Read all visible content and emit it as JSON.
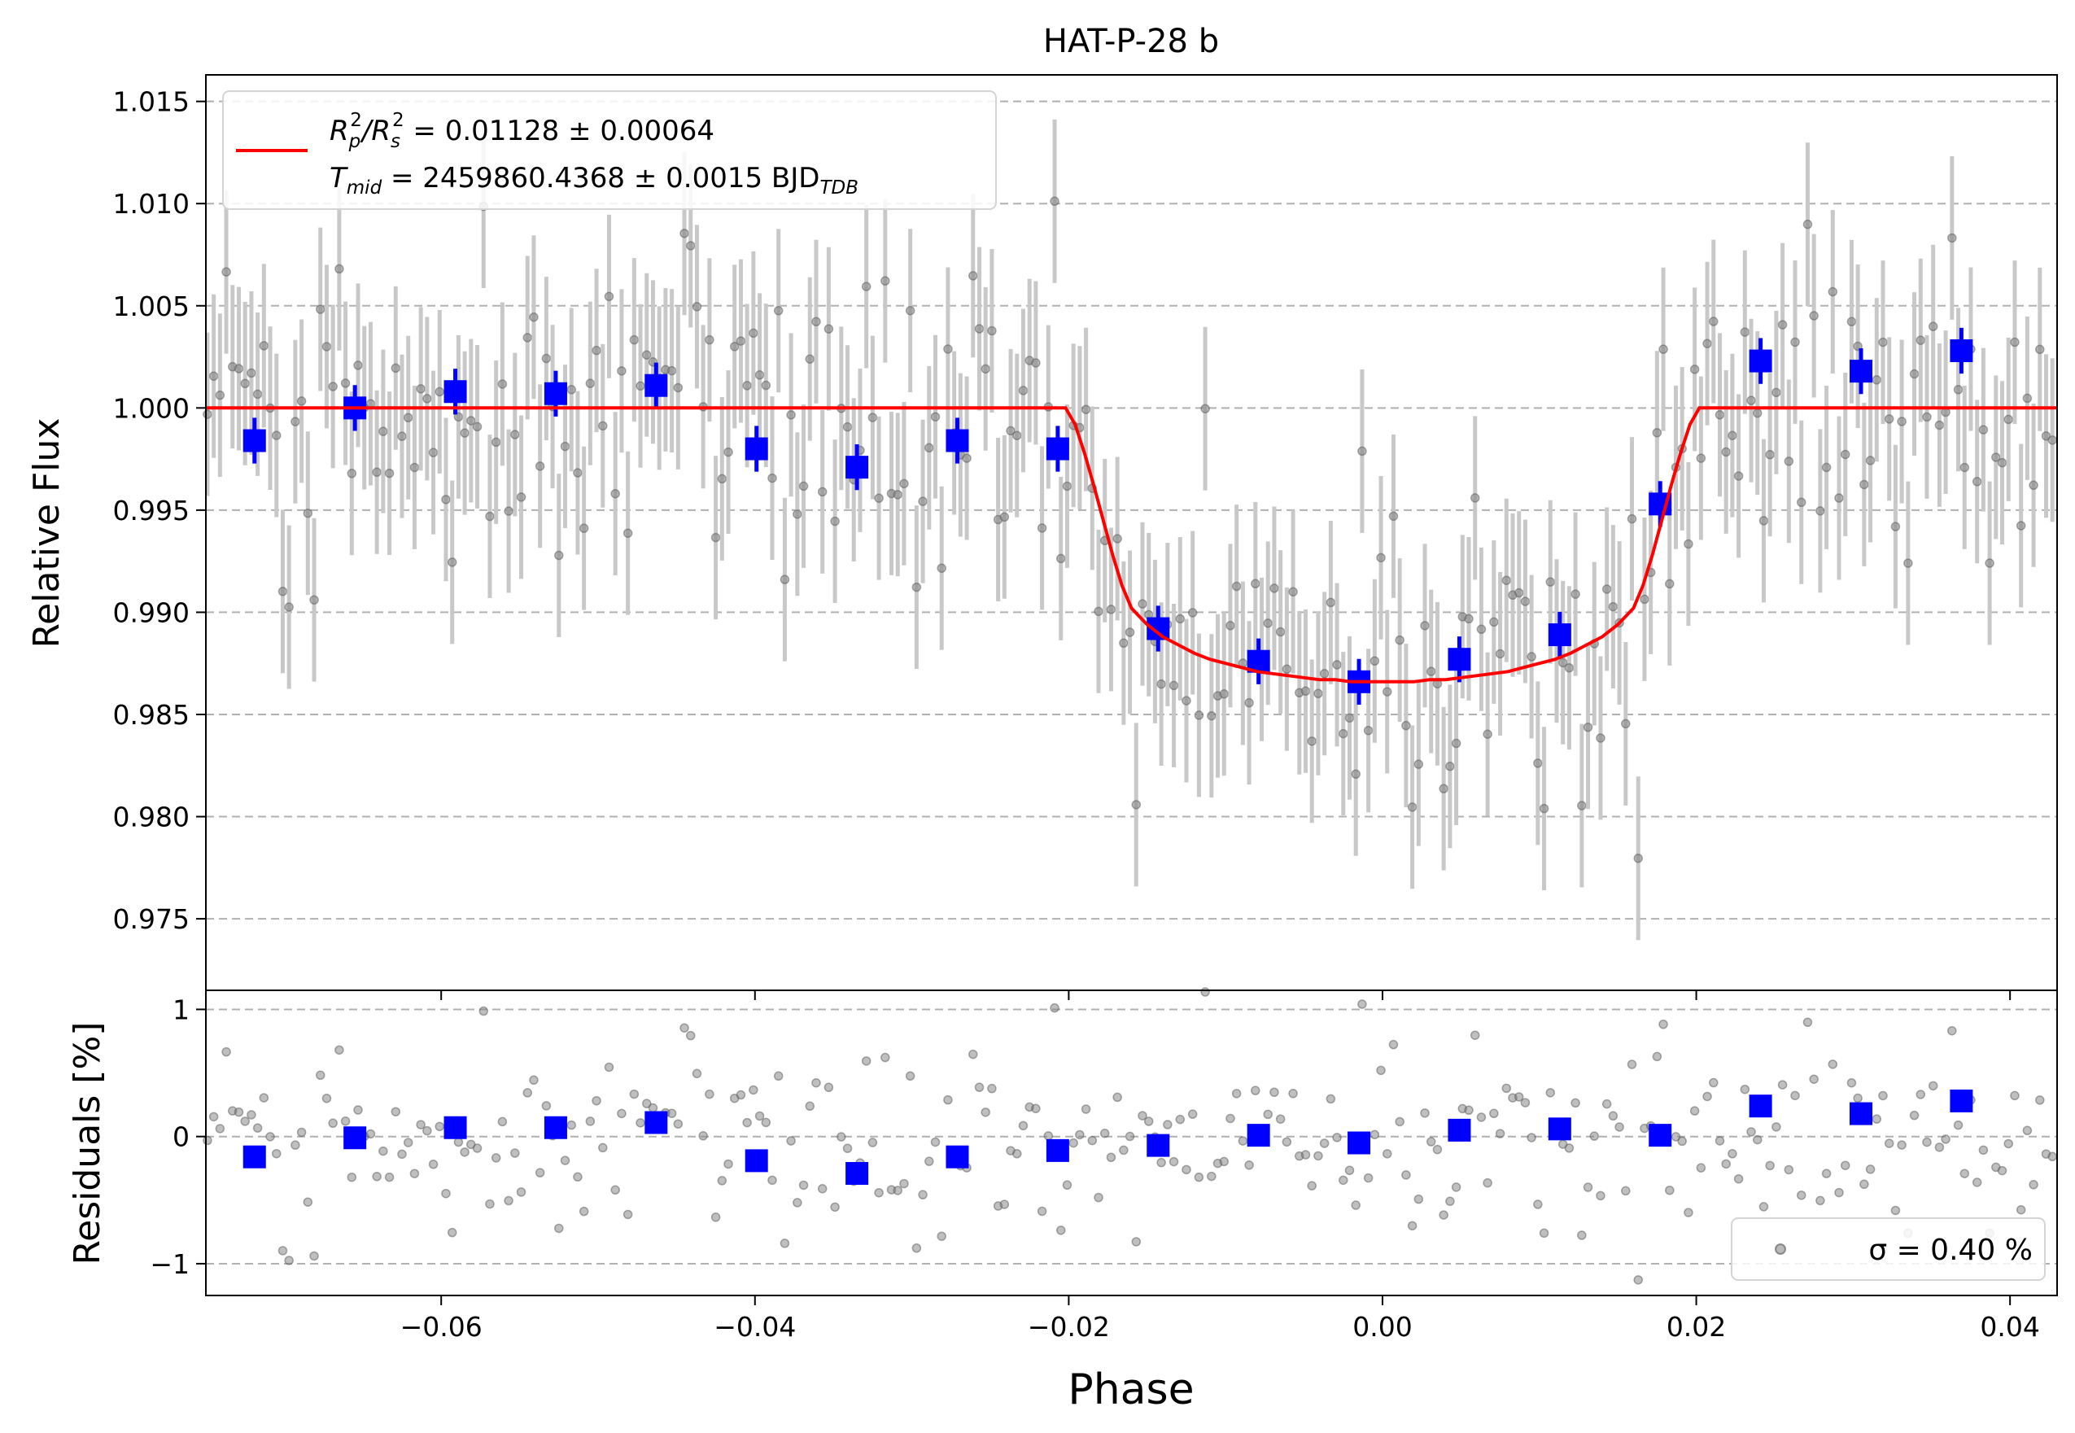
{
  "chart_data": [
    {
      "type": "scatter",
      "panel": "flux",
      "title": "HAT-P-28 b",
      "xlabel": "",
      "ylabel": "Relative Flux",
      "xlim": [
        -0.075,
        0.043
      ],
      "ylim": [
        0.9715,
        1.0163
      ],
      "grid": "horizontal-dashed",
      "legend_position": "top-left",
      "x_ticks": [
        -0.06,
        -0.04,
        -0.02,
        0.0,
        0.02,
        0.04
      ],
      "x_tick_labels": [
        "−0.06",
        "−0.04",
        "−0.02",
        "0.00",
        "0.02",
        "0.04"
      ],
      "y_ticks": [
        0.975,
        0.98,
        0.985,
        0.99,
        0.995,
        1.0,
        1.005,
        1.01,
        1.015
      ],
      "y_tick_labels": [
        "0.975",
        "0.980",
        "0.985",
        "0.990",
        "0.995",
        "1.000",
        "1.005",
        "1.010",
        "1.015"
      ],
      "legend": {
        "line1_prefix": "R",
        "line1_sub1": "p",
        "line1_sup1": "2",
        "line1_slash": "/R",
        "line1_sub2": "s",
        "line1_sup2": "2",
        "line1_value": " = 0.01128 ± 0.00064",
        "line2_prefix": "T",
        "line2_sub": "mid",
        "line2_value": " = 2459860.4368 ± 0.0015 BJD",
        "line2_unit_sub": "TDB"
      },
      "model": {
        "name": "",
        "color": "#ff0000",
        "baseline": 1.0,
        "depth": 0.01128,
        "t14_half": 0.0202,
        "t23_half": 0.0158,
        "limb_darkening": 0.3,
        "x": [
          -0.075,
          -0.0202,
          -0.0196,
          -0.019,
          -0.0184,
          -0.0178,
          -0.0172,
          -0.0166,
          -0.016,
          -0.0155,
          -0.015,
          -0.014,
          -0.013,
          -0.012,
          -0.011,
          -0.01,
          -0.009,
          -0.008,
          -0.007,
          -0.006,
          -0.005,
          -0.004,
          -0.003,
          -0.002,
          -0.001,
          0.0,
          0.001,
          0.002,
          0.003,
          0.004,
          0.005,
          0.006,
          0.007,
          0.008,
          0.009,
          0.01,
          0.011,
          0.012,
          0.013,
          0.014,
          0.015,
          0.0155,
          0.016,
          0.0166,
          0.0172,
          0.0178,
          0.0184,
          0.019,
          0.0196,
          0.0202,
          0.043
        ],
        "y": [
          1.0,
          1.0,
          0.9992,
          0.9978,
          0.9962,
          0.9945,
          0.9928,
          0.9913,
          0.9902,
          0.9898,
          0.9894,
          0.9888,
          0.9884,
          0.988,
          0.9877,
          0.9875,
          0.9873,
          0.9871,
          0.987,
          0.9869,
          0.9868,
          0.9867,
          0.9867,
          0.9866,
          0.9866,
          0.9866,
          0.9866,
          0.9866,
          0.9867,
          0.9867,
          0.9868,
          0.9869,
          0.987,
          0.9871,
          0.9873,
          0.9875,
          0.9877,
          0.988,
          0.9884,
          0.9888,
          0.9894,
          0.9898,
          0.9902,
          0.9913,
          0.9928,
          0.9945,
          0.9962,
          0.9978,
          0.9992,
          1.0,
          1.0
        ]
      },
      "binned": {
        "name": "",
        "color": "#0000ff",
        "x": [
          -0.0719,
          -0.0655,
          -0.0591,
          -0.0527,
          -0.0463,
          -0.0399,
          -0.0335,
          -0.0271,
          -0.0207,
          -0.0143,
          -0.0079,
          -0.0015,
          0.0049,
          0.0113,
          0.0177,
          0.0241,
          0.0305,
          0.0369
        ],
        "y": [
          0.9984,
          1.0,
          1.0008,
          1.0007,
          1.0011,
          0.998,
          0.9971,
          0.9984,
          0.998,
          0.9892,
          0.9876,
          0.9866,
          0.9877,
          0.9889,
          0.9953,
          1.0023,
          1.0018,
          1.0028
        ],
        "err": [
          0.0008,
          0.0008,
          0.0008,
          0.0008,
          0.0008,
          0.0008,
          0.0008,
          0.0008,
          0.0008,
          0.0008,
          0.0008,
          0.0008,
          0.0008,
          0.0008,
          0.0008,
          0.0008,
          0.0008,
          0.0008
        ]
      },
      "raw": {
        "name": "",
        "color": "#808080",
        "error_bar_color": "#c8c8c8",
        "x_start": -0.0749,
        "x_step": 0.0004,
        "count": 296,
        "y_error": 0.004
      }
    },
    {
      "type": "scatter",
      "panel": "residuals",
      "xlabel": "Phase",
      "ylabel": "Residuals [%]",
      "xlim": [
        -0.075,
        0.043
      ],
      "ylim": [
        -1.25,
        1.15
      ],
      "grid": "horizontal-dashed",
      "legend_position": "bottom-right",
      "y_ticks": [
        -1,
        0,
        1
      ],
      "y_tick_labels": [
        "−1",
        "0",
        "1"
      ],
      "legend": {
        "label": "σ = 0.40 %"
      },
      "sigma_percent": 0.4,
      "binned": {
        "name": "",
        "color": "#0000ff",
        "x": [
          -0.0719,
          -0.0655,
          -0.0591,
          -0.0527,
          -0.0463,
          -0.0399,
          -0.0335,
          -0.0271,
          -0.0207,
          -0.0143,
          -0.0079,
          -0.0015,
          0.0049,
          0.0113,
          0.0177,
          0.0241,
          0.0305,
          0.0369
        ],
        "y": [
          -0.16,
          -0.01,
          0.07,
          0.07,
          0.11,
          -0.19,
          -0.29,
          -0.16,
          -0.11,
          -0.07,
          0.01,
          -0.05,
          0.05,
          0.06,
          0.01,
          0.24,
          0.18,
          0.28
        ]
      }
    }
  ]
}
